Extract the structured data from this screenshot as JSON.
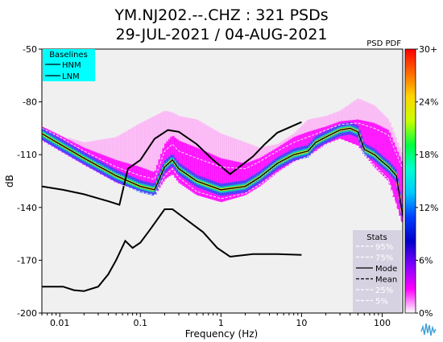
{
  "title_line1": "YM.NJ202.--.CHZ : 321 PSDs",
  "title_line2": "29-JUL-2021 / 04-AUG-2021",
  "psd_pdf_label": "PSD PDF",
  "colors": {
    "background": "#f0f0f0",
    "baseline_box": "#00ffff",
    "stats_box": "#d6d2e2",
    "noise_model": "#000000"
  },
  "logo_icon": "seismic-wave-logo-icon",
  "baselines": {
    "title": "Baselines",
    "items": [
      {
        "label": "HNM",
        "style": "solid"
      },
      {
        "label": "LNM",
        "style": "solid"
      }
    ]
  },
  "stats": {
    "title": "Stats",
    "items": [
      {
        "label": "95%",
        "color": "#ffffff",
        "style": "dashed"
      },
      {
        "label": "75%",
        "color": "#ffffff",
        "style": "dashed"
      },
      {
        "label": "Mode",
        "color": "#000000",
        "style": "solid"
      },
      {
        "label": "Mean",
        "color": "#000000",
        "style": "dashed"
      },
      {
        "label": "25%",
        "color": "#ffffff",
        "style": "dashed"
      },
      {
        "label": "5%",
        "color": "#ffffff",
        "style": "dashed"
      }
    ]
  },
  "colorbar": {
    "ticks": [
      "30+",
      "24%",
      "18%",
      "12%",
      "6%",
      "0%"
    ],
    "tick_values": [
      30,
      24,
      18,
      12,
      6,
      0
    ],
    "colors": [
      "#ff0000",
      "#ff6a00",
      "#ffd700",
      "#c8ff00",
      "#00ff40",
      "#00ffd0",
      "#00c8ff",
      "#0040ff",
      "#0000c8",
      "#8000ff",
      "#ff00ff",
      "#ffffff"
    ]
  },
  "chart_data": {
    "type": "heatmap",
    "xlabel": "Frequency (Hz)",
    "ylabel": "dB",
    "x_scale": "log",
    "xlim": [
      0.006,
      180
    ],
    "ylim": [
      -200,
      -50
    ],
    "x_ticks": [
      {
        "value": 0.01,
        "label": "0.01"
      },
      {
        "value": 0.1,
        "label": "0.1"
      },
      {
        "value": 1,
        "label": "1"
      },
      {
        "value": 10,
        "label": "10"
      },
      {
        "value": 100,
        "label": "100"
      }
    ],
    "y_ticks": [
      {
        "value": -50,
        "label": "-50"
      },
      {
        "value": -80,
        "label": "-80"
      },
      {
        "value": -110,
        "label": "-110"
      },
      {
        "value": -140,
        "label": "-140"
      },
      {
        "value": -170,
        "label": "-170"
      },
      {
        "value": -200,
        "label": "-200"
      }
    ],
    "series": [
      {
        "name": "HNM",
        "x": [
          0.006,
          0.011,
          0.02,
          0.04,
          0.055,
          0.07,
          0.1,
          0.15,
          0.22,
          0.3,
          0.5,
          0.8,
          1.3,
          2.5,
          3.5,
          5,
          10
        ],
        "y": [
          -128,
          -130,
          -132.5,
          -136.5,
          -138.5,
          -118,
          -113,
          -101,
          -96,
          -97,
          -104,
          -113,
          -121,
          -111,
          -104,
          -97.5,
          -91.5
        ]
      },
      {
        "name": "LNM",
        "x": [
          0.006,
          0.011,
          0.015,
          0.02,
          0.03,
          0.04,
          0.05,
          0.065,
          0.08,
          0.1,
          0.13,
          0.2,
          0.25,
          0.35,
          0.6,
          0.9,
          1.3,
          2.5,
          5,
          10
        ],
        "y": [
          -185,
          -185,
          -187,
          -187.5,
          -185,
          -178,
          -170,
          -159,
          -163,
          -160,
          -153,
          -141,
          -141,
          -146,
          -154,
          -163,
          -168,
          -166.5,
          -166.5,
          -167
        ]
      },
      {
        "name": "Mode",
        "x": [
          0.006,
          0.01,
          0.02,
          0.05,
          0.1,
          0.15,
          0.2,
          0.25,
          0.3,
          0.5,
          1,
          2,
          3,
          5,
          8,
          12,
          15,
          20,
          30,
          40,
          50,
          60,
          80,
          100,
          120,
          150,
          180
        ],
        "y": [
          -98,
          -104,
          -112,
          -122,
          -128,
          -130,
          -117,
          -113,
          -118,
          -125,
          -130,
          -128,
          -123,
          -115,
          -110,
          -108,
          -103,
          -100,
          -96,
          -95,
          -97,
          -107,
          -110,
          -114,
          -117,
          -122,
          -145
        ]
      },
      {
        "name": "5%",
        "x": [
          0.006,
          0.01,
          0.02,
          0.05,
          0.1,
          0.15,
          0.2,
          0.25,
          0.3,
          0.5,
          1,
          2,
          3,
          5,
          8,
          12,
          20,
          30,
          50,
          80,
          120,
          180
        ],
        "y": [
          -102,
          -108,
          -116,
          -126,
          -131,
          -133,
          -122,
          -118,
          -123,
          -131,
          -135,
          -132,
          -127,
          -120,
          -114,
          -111,
          -104,
          -101,
          -105,
          -116,
          -124,
          -152
        ]
      },
      {
        "name": "95%",
        "x": [
          0.006,
          0.01,
          0.02,
          0.05,
          0.1,
          0.15,
          0.2,
          0.25,
          0.3,
          0.5,
          1,
          2,
          3,
          5,
          8,
          12,
          20,
          30,
          50,
          80,
          120,
          180
        ],
        "y": [
          -95,
          -100,
          -108,
          -117,
          -122,
          -124,
          -108,
          -104,
          -108,
          -112,
          -117,
          -118,
          -114,
          -108,
          -103,
          -100,
          -96,
          -93,
          -92,
          -95,
          -99,
          -118
        ]
      }
    ],
    "density_band": {
      "x": [
        0.006,
        0.01,
        0.02,
        0.05,
        0.1,
        0.15,
        0.2,
        0.25,
        0.3,
        0.5,
        1,
        2,
        3,
        5,
        8,
        12,
        20,
        30,
        50,
        80,
        120,
        180
      ],
      "upper": [
        -94,
        -99,
        -106,
        -113,
        -117,
        -120,
        -104,
        -99,
        -102,
        -106,
        -112,
        -115,
        -112,
        -106,
        -100,
        -97,
        -94,
        -91,
        -90,
        -92,
        -96,
        -115
      ],
      "lower": [
        -102,
        -108,
        -116,
        -126,
        -131,
        -133,
        -124,
        -121,
        -126,
        -133,
        -137,
        -133,
        -128,
        -120,
        -114,
        -111,
        -104,
        -101,
        -105,
        -117,
        -125,
        -150
      ],
      "scatter_upper": [
        -94,
        -99,
        -103,
        -100,
        -92,
        -88,
        -85,
        -86,
        -88,
        -90,
        -98,
        -103,
        -106,
        -104,
        -98,
        -90,
        -88,
        -85,
        -78,
        -82,
        -90,
        -110
      ]
    }
  }
}
